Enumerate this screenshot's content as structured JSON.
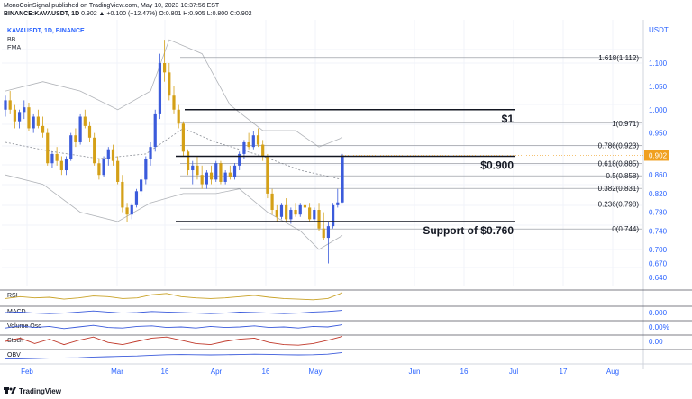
{
  "header": {
    "line1": "MonoCoinSignal published on TradingView.com, May 10, 2023 10:37:56 EST",
    "symbol": "BINANCE:KAVAUSDT, 1D",
    "quote": "0.902 ▲ +0.100 (+12.47%) O:0.801 H:0.905 L:0.800 C:0.902"
  },
  "legend": {
    "symbol": "KAVAUSDT, 1D, BINANCE",
    "bb": "BB",
    "ema": "EMA"
  },
  "chart_data": {
    "type": "candlestick",
    "currency_label": "USDT",
    "price_axis_ticks": [
      "1.100",
      "1.050",
      "1.000",
      "0.950",
      "0.900",
      "0.860",
      "0.820",
      "0.780",
      "0.740",
      "0.700",
      "0.670",
      "0.640"
    ],
    "last_price": "0.902",
    "x_ticks": [
      "Feb",
      "Mar",
      "16",
      "Apr",
      "16",
      "May",
      "Jun",
      "16",
      "Jul",
      "17",
      "Aug"
    ],
    "candles": [
      [
        1.0,
        1.03,
        0.985,
        1.02
      ],
      [
        1.02,
        1.04,
        0.99,
        1.0
      ],
      [
        1.0,
        1.01,
        0.96,
        0.975
      ],
      [
        0.975,
        1.0,
        0.96,
        0.995
      ],
      [
        0.995,
        1.02,
        0.98,
        1.005
      ],
      [
        1.005,
        1.015,
        0.955,
        0.96
      ],
      [
        0.96,
        0.99,
        0.95,
        0.985
      ],
      [
        0.985,
        1.0,
        0.96,
        0.965
      ],
      [
        0.965,
        0.985,
        0.94,
        0.95
      ],
      [
        0.95,
        0.96,
        0.88,
        0.885
      ],
      [
        0.885,
        0.91,
        0.875,
        0.905
      ],
      [
        0.905,
        0.92,
        0.88,
        0.89
      ],
      [
        0.89,
        0.9,
        0.86,
        0.87
      ],
      [
        0.87,
        0.9,
        0.86,
        0.895
      ],
      [
        0.895,
        0.95,
        0.89,
        0.945
      ],
      [
        0.945,
        0.96,
        0.92,
        0.93
      ],
      [
        0.93,
        0.99,
        0.925,
        0.985
      ],
      [
        0.985,
        1.0,
        0.96,
        0.965
      ],
      [
        0.965,
        0.975,
        0.93,
        0.94
      ],
      [
        0.94,
        0.95,
        0.88,
        0.885
      ],
      [
        0.885,
        0.895,
        0.85,
        0.86
      ],
      [
        0.86,
        0.9,
        0.855,
        0.895
      ],
      [
        0.895,
        0.92,
        0.88,
        0.915
      ],
      [
        0.915,
        0.925,
        0.88,
        0.89
      ],
      [
        0.89,
        0.9,
        0.84,
        0.845
      ],
      [
        0.845,
        0.86,
        0.78,
        0.79
      ],
      [
        0.79,
        0.8,
        0.76,
        0.775
      ],
      [
        0.775,
        0.8,
        0.765,
        0.795
      ],
      [
        0.795,
        0.83,
        0.79,
        0.825
      ],
      [
        0.825,
        0.86,
        0.815,
        0.85
      ],
      [
        0.85,
        0.9,
        0.84,
        0.895
      ],
      [
        0.895,
        0.93,
        0.88,
        0.92
      ],
      [
        0.92,
        1.0,
        0.91,
        0.99
      ],
      [
        0.99,
        1.12,
        0.98,
        1.1
      ],
      [
        1.1,
        1.15,
        1.06,
        1.08
      ],
      [
        1.08,
        1.1,
        1.02,
        1.03
      ],
      [
        1.03,
        1.05,
        0.99,
        1.0
      ],
      [
        1.0,
        1.01,
        0.96,
        0.97
      ],
      [
        0.97,
        0.975,
        0.9,
        0.91
      ],
      [
        0.91,
        0.915,
        0.86,
        0.87
      ],
      [
        0.87,
        0.89,
        0.84,
        0.88
      ],
      [
        0.88,
        0.9,
        0.85,
        0.86
      ],
      [
        0.86,
        0.88,
        0.83,
        0.84
      ],
      [
        0.84,
        0.87,
        0.83,
        0.865
      ],
      [
        0.865,
        0.88,
        0.84,
        0.85
      ],
      [
        0.85,
        0.89,
        0.845,
        0.885
      ],
      [
        0.885,
        0.89,
        0.84,
        0.845
      ],
      [
        0.845,
        0.87,
        0.84,
        0.865
      ],
      [
        0.865,
        0.88,
        0.85,
        0.855
      ],
      [
        0.855,
        0.885,
        0.85,
        0.88
      ],
      [
        0.88,
        0.91,
        0.87,
        0.905
      ],
      [
        0.905,
        0.935,
        0.895,
        0.93
      ],
      [
        0.93,
        0.95,
        0.915,
        0.92
      ],
      [
        0.92,
        0.955,
        0.915,
        0.945
      ],
      [
        0.945,
        0.96,
        0.92,
        0.925
      ],
      [
        0.925,
        0.935,
        0.89,
        0.9
      ],
      [
        0.9,
        0.905,
        0.81,
        0.82
      ],
      [
        0.82,
        0.83,
        0.775,
        0.785
      ],
      [
        0.785,
        0.795,
        0.76,
        0.77
      ],
      [
        0.77,
        0.8,
        0.765,
        0.795
      ],
      [
        0.795,
        0.81,
        0.76,
        0.765
      ],
      [
        0.765,
        0.79,
        0.755,
        0.785
      ],
      [
        0.785,
        0.8,
        0.77,
        0.775
      ],
      [
        0.775,
        0.8,
        0.77,
        0.795
      ],
      [
        0.795,
        0.81,
        0.785,
        0.79
      ],
      [
        0.79,
        0.8,
        0.76,
        0.765
      ],
      [
        0.765,
        0.79,
        0.758,
        0.785
      ],
      [
        0.785,
        0.8,
        0.74,
        0.745
      ],
      [
        0.745,
        0.78,
        0.72,
        0.725
      ],
      [
        0.725,
        0.76,
        0.67,
        0.75
      ],
      [
        0.75,
        0.8,
        0.745,
        0.795
      ],
      [
        0.795,
        0.83,
        0.79,
        0.801
      ],
      [
        0.801,
        0.905,
        0.8,
        0.902
      ]
    ],
    "bands": {
      "ema": [
        [
          0,
          0.93
        ],
        [
          10,
          0.91
        ],
        [
          20,
          0.895
        ],
        [
          30,
          0.905
        ],
        [
          38,
          0.96
        ],
        [
          45,
          0.93
        ],
        [
          55,
          0.9
        ],
        [
          63,
          0.87
        ],
        [
          72,
          0.85
        ]
      ],
      "upper": [
        [
          0,
          1.04
        ],
        [
          8,
          1.06
        ],
        [
          16,
          1.04
        ],
        [
          24,
          1.0
        ],
        [
          31,
          1.04
        ],
        [
          35,
          1.15
        ],
        [
          42,
          1.12
        ],
        [
          48,
          1.01
        ],
        [
          55,
          0.955
        ],
        [
          62,
          0.955
        ],
        [
          67,
          0.92
        ],
        [
          72,
          0.94
        ]
      ],
      "lower": [
        [
          0,
          0.86
        ],
        [
          8,
          0.84
        ],
        [
          16,
          0.78
        ],
        [
          24,
          0.76
        ],
        [
          31,
          0.8
        ],
        [
          38,
          0.82
        ],
        [
          45,
          0.82
        ],
        [
          50,
          0.83
        ],
        [
          56,
          0.78
        ],
        [
          63,
          0.74
        ],
        [
          67,
          0.7
        ],
        [
          72,
          0.73
        ]
      ]
    },
    "fib_levels": [
      {
        "price": 1.112,
        "label": "1.618(1.112)"
      },
      {
        "price": 0.971,
        "label": "1(0.971)"
      },
      {
        "price": 0.923,
        "label": "0.786(0.923)"
      },
      {
        "price": 0.885,
        "label": "0.618(0.885)"
      },
      {
        "price": 0.858,
        "label": "0.5(0.858)"
      },
      {
        "price": 0.831,
        "label": "0.382(0.831)"
      },
      {
        "price": 0.798,
        "label": "0.236(0.798)"
      },
      {
        "price": 0.744,
        "label": "0(0.744)"
      }
    ],
    "annotations": [
      {
        "price": 1.0,
        "label": "$1"
      },
      {
        "price": 0.9,
        "label": "$0.900"
      },
      {
        "price": 0.76,
        "label": "Support of $0.760"
      }
    ]
  },
  "panes": [
    {
      "label": "RSI",
      "tick": "",
      "line": [
        0.4,
        0.55,
        0.45,
        0.5,
        0.35,
        0.45,
        0.6,
        0.55,
        0.4,
        0.45,
        0.7,
        0.8,
        0.55,
        0.45,
        0.4,
        0.45,
        0.55,
        0.65,
        0.5,
        0.4,
        0.35,
        0.3,
        0.4,
        0.85
      ]
    },
    {
      "label": "MACD",
      "tick": "0.000",
      "line": [
        0.5,
        0.55,
        0.45,
        0.4,
        0.45,
        0.55,
        0.65,
        0.55,
        0.45,
        0.5,
        0.6,
        0.55,
        0.5,
        0.45,
        0.4,
        0.45,
        0.55,
        0.5,
        0.45,
        0.4,
        0.45,
        0.55,
        0.6,
        0.7
      ]
    },
    {
      "label": "Volume Osc",
      "tick": "0.00%",
      "line": [
        0.4,
        0.6,
        0.45,
        0.55,
        0.35,
        0.5,
        0.65,
        0.45,
        0.4,
        0.55,
        0.6,
        0.45,
        0.5,
        0.4,
        0.55,
        0.45,
        0.5,
        0.6,
        0.45,
        0.5,
        0.4,
        0.55,
        0.5,
        0.7
      ]
    },
    {
      "label": "Stoch",
      "tick": "0.00",
      "line": [
        0.5,
        0.8,
        0.3,
        0.7,
        0.2,
        0.6,
        0.9,
        0.4,
        0.2,
        0.5,
        0.8,
        0.9,
        0.6,
        0.3,
        0.2,
        0.5,
        0.7,
        0.8,
        0.4,
        0.2,
        0.15,
        0.3,
        0.6,
        0.95
      ]
    },
    {
      "label": "OBV",
      "tick": "",
      "line": [
        0.2,
        0.22,
        0.25,
        0.28,
        0.3,
        0.32,
        0.38,
        0.42,
        0.45,
        0.48,
        0.55,
        0.6,
        0.62,
        0.6,
        0.58,
        0.6,
        0.62,
        0.65,
        0.63,
        0.6,
        0.58,
        0.6,
        0.65,
        0.8
      ]
    }
  ],
  "colors": {
    "up": "#3b5bdb",
    "down": "#d4a017",
    "bands": "#b0b3b8",
    "ema": "#8a8e96",
    "fib": "#8a8e96",
    "line": "#131722",
    "axis_text": "#2962ff",
    "price_tag": "#f0a020"
  },
  "footer": {
    "brand": "TradingView"
  }
}
